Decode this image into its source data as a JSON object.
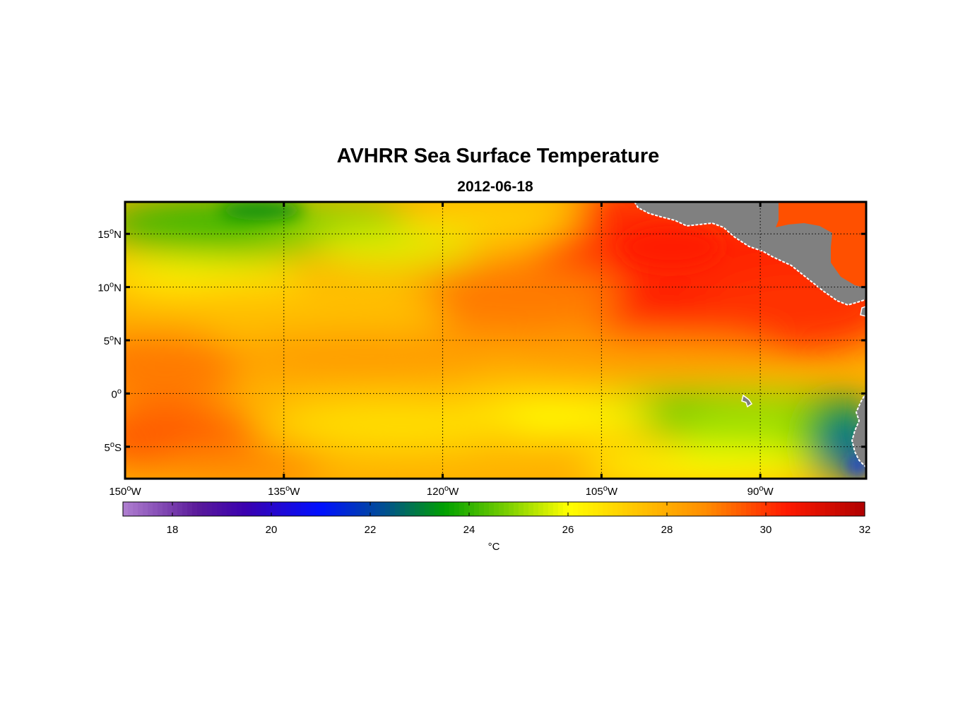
{
  "title": "AVHRR Sea Surface Temperature",
  "subtitle": "2012-06-18",
  "map": {
    "lon_range": [
      -150,
      -80
    ],
    "lat_range": [
      -8,
      18
    ],
    "grid": "dotted",
    "lon_ticks": [
      {
        "value": -150,
        "num": "150",
        "dir": "W"
      },
      {
        "value": -135,
        "num": "135",
        "dir": "W"
      },
      {
        "value": -120,
        "num": "120",
        "dir": "W"
      },
      {
        "value": -105,
        "num": "105",
        "dir": "W"
      },
      {
        "value": -90,
        "num": "90",
        "dir": "W"
      }
    ],
    "lat_ticks": [
      {
        "value": 15,
        "num": "15",
        "dir": "N"
      },
      {
        "value": 10,
        "num": "10",
        "dir": "N"
      },
      {
        "value": 5,
        "num": "5",
        "dir": "N"
      },
      {
        "value": 0,
        "num": "0",
        "dir": ""
      },
      {
        "value": -5,
        "num": "5",
        "dir": "S"
      }
    ],
    "degree_symbol": "o",
    "land_color": "#808080",
    "coast_color": "#ffffff"
  },
  "colorbar": {
    "range": [
      17,
      32
    ],
    "ticks": [
      18,
      20,
      22,
      24,
      26,
      28,
      30,
      32
    ],
    "unit": "°C",
    "stops": [
      {
        "t": 17,
        "c": "#b07fd0"
      },
      {
        "t": 18.5,
        "c": "#5a1a9a"
      },
      {
        "t": 19.5,
        "c": "#3a00b0"
      },
      {
        "t": 21,
        "c": "#0010ff"
      },
      {
        "t": 22.3,
        "c": "#005090"
      },
      {
        "t": 23.5,
        "c": "#00a000"
      },
      {
        "t": 24.8,
        "c": "#7ed000"
      },
      {
        "t": 26,
        "c": "#ffff00"
      },
      {
        "t": 27.3,
        "c": "#ffc800"
      },
      {
        "t": 28.8,
        "c": "#ff8c00"
      },
      {
        "t": 30.4,
        "c": "#ff1a00"
      },
      {
        "t": 32,
        "c": "#b00000"
      }
    ]
  }
}
